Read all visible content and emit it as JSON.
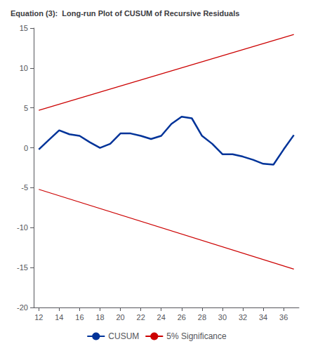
{
  "chart_data": {
    "type": "line",
    "title": "Equation (3):  Long-run Plot of CUSUM of Recursive Residuals",
    "series": [
      {
        "name": "CUSUM",
        "color": "#003399",
        "x": [
          12,
          13,
          14,
          15,
          16,
          17,
          18,
          19,
          20,
          21,
          22,
          23,
          24,
          25,
          26,
          27,
          28,
          29,
          30,
          31,
          32,
          33,
          34,
          35,
          36,
          37
        ],
        "values": [
          -0.2,
          1.0,
          2.2,
          1.7,
          1.5,
          0.7,
          0.0,
          0.5,
          1.8,
          1.8,
          1.5,
          1.1,
          1.5,
          3.0,
          3.9,
          3.7,
          1.5,
          0.5,
          -0.8,
          -0.8,
          -1.1,
          -1.5,
          -2.0,
          -2.1,
          -0.2,
          1.6
        ]
      },
      {
        "name": "5% Significance",
        "color": "#CC0000",
        "x": [
          12,
          37
        ],
        "values": [
          4.7,
          14.2
        ]
      },
      {
        "name": "5% Significance",
        "color": "#CC0000",
        "x": [
          12,
          37
        ],
        "values": [
          -5.2,
          -15.2
        ]
      }
    ],
    "xlim": [
      11.5,
      37.5
    ],
    "ylim": [
      -20,
      15
    ],
    "xticks": [
      12,
      14,
      16,
      18,
      20,
      22,
      24,
      26,
      28,
      30,
      32,
      34,
      36
    ],
    "yticks": [
      -20,
      -15,
      -10,
      -5,
      0,
      5,
      10,
      15
    ],
    "grid": false,
    "legend": "bottom"
  }
}
